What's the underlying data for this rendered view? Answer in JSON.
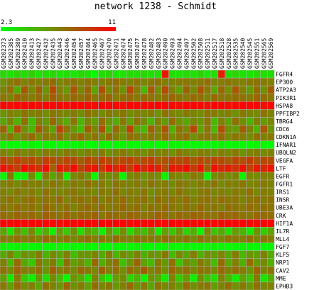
{
  "chart_data": {
    "type": "heatmap",
    "title": "network 1238 - Schmidt",
    "color_scale": {
      "min": 2.3,
      "max": 11,
      "min_label": "2.3",
      "max_label": "11",
      "low_color": "#00ff00",
      "high_color": "#ff0000",
      "mid_color": "#808000"
    },
    "grid_color": "#b0b0b0",
    "columns": [
      "GSM202373",
      "GSM202385",
      "GSM202389",
      "GSM202410",
      "GSM202413",
      "GSM202427",
      "GSM202432",
      "GSM202435",
      "GSM202443",
      "GSM202446",
      "GSM202454",
      "GSM202457",
      "GSM202464",
      "GSM202465",
      "GSM202467",
      "GSM202470",
      "GSM202471",
      "GSM202474",
      "GSM202475",
      "GSM202477",
      "GSM202478",
      "GSM202482",
      "GSM202483",
      "GSM202490",
      "GSM202493",
      "GSM202494",
      "GSM202497",
      "GSM202502",
      "GSM202508",
      "GSM202511",
      "GSM202517",
      "GSM202518",
      "GSM202528",
      "GSM202535",
      "GSM202540",
      "GSM202545",
      "GSM202551",
      "GSM202565",
      "GSM202569"
    ],
    "rows": [
      "FGFR4",
      "EP300",
      "ATP2A3",
      "PIK3R1",
      "HSPA8",
      "PPFIBP2",
      "TBRG4",
      "CDC6",
      "CDKN1A",
      "IFNAR1",
      "UBQLN2",
      "VEGFA",
      "LTF",
      "EGFR",
      "FGFR1",
      "IRS1",
      "INSR",
      "UBE3A",
      "CRK",
      "HIF1A",
      "IL7R",
      "MLL4",
      "FGF7",
      "KLF5",
      "NRP1",
      "CAV2",
      "MME",
      "EPHB3"
    ],
    "values": [
      [
        3.6,
        3.2,
        3.8,
        3.4,
        3.9,
        3.3,
        3.5,
        3.7,
        3.2,
        3.4,
        3.1,
        3.6,
        3.3,
        2.5,
        3.5,
        3.8,
        3.2,
        3.3,
        3.6,
        3.4,
        3.7,
        3.3,
        3.5,
        10.2,
        3.4,
        3.2,
        3.6,
        3.3,
        3.9,
        3.1,
        3.5,
        10.0,
        3.4,
        3.7,
        3.3,
        3.2,
        3.6,
        3.4,
        3.5
      ],
      [
        6.1,
        6.8,
        7.2,
        6.5,
        7.0,
        6.6,
        6.9,
        7.3,
        6.4,
        6.8,
        7.1,
        6.6,
        7.0,
        6.7,
        6.5,
        6.9,
        7.2,
        6.8,
        6.6,
        7.0,
        6.4,
        6.9,
        7.1,
        6.7,
        6.5,
        6.8,
        7.0,
        6.6,
        6.9,
        7.2,
        6.5,
        6.8,
        7.0,
        6.7,
        6.6,
        6.9,
        7.1,
        6.8,
        6.6
      ],
      [
        6.5,
        7.4,
        5.2,
        8.1,
        6.3,
        7.8,
        6.0,
        8.5,
        6.7,
        5.8,
        8.0,
        6.4,
        7.6,
        5.4,
        8.3,
        6.2,
        7.2,
        5.9,
        8.6,
        6.8,
        4.8,
        7.9,
        6.1,
        8.4,
        6.6,
        5.6,
        7.7,
        6.3,
        8.2,
        6.9,
        5.3,
        7.5,
        6.0,
        8.0,
        6.7,
        5.7,
        7.3,
        6.2,
        7.9
      ],
      [
        7.0,
        6.5,
        7.6,
        7.2,
        6.8,
        7.4,
        6.6,
        7.8,
        7.1,
        6.7,
        7.5,
        7.0,
        7.7,
        6.9,
        7.3,
        7.6,
        6.8,
        7.2,
        7.5,
        6.9,
        7.4,
        7.1,
        6.7,
        7.3,
        7.6,
        7.0,
        6.8,
        7.4,
        7.2,
        6.6,
        7.5,
        7.0,
        6.9,
        7.3,
        7.1,
        6.8,
        7.6,
        7.2,
        7.0
      ],
      [
        10.8,
        10.6,
        10.9,
        10.7,
        10.8,
        10.5,
        10.9,
        10.7,
        10.8,
        10.6,
        10.9,
        10.8,
        10.7,
        10.6,
        10.9,
        10.8,
        10.7,
        10.5,
        10.9,
        10.8,
        10.6,
        10.7,
        10.9,
        10.8,
        10.7,
        10.6,
        10.9,
        10.8,
        10.7,
        10.5,
        10.9,
        10.8,
        10.6,
        10.7,
        10.9,
        10.8,
        10.7,
        10.6,
        10.8
      ],
      [
        6.0,
        6.7,
        6.3,
        7.1,
        6.5,
        6.9,
        6.2,
        7.0,
        6.6,
        6.4,
        6.8,
        6.1,
        7.2,
        6.6,
        6.3,
        6.9,
        6.5,
        7.0,
        6.2,
        6.7,
        6.4,
        6.8,
        6.0,
        7.1,
        6.6,
        6.3,
        6.9,
        6.5,
        6.2,
        7.0,
        6.8,
        6.4,
        6.7,
        6.1,
        6.9,
        6.5,
        6.3,
        7.0,
        6.6
      ],
      [
        5.4,
        6.6,
        5.0,
        7.2,
        4.6,
        6.8,
        5.8,
        7.5,
        6.2,
        5.2,
        7.0,
        4.8,
        6.5,
        5.6,
        7.3,
        6.0,
        5.1,
        6.9,
        5.5,
        7.1,
        6.3,
        4.9,
        6.7,
        5.7,
        7.4,
        6.1,
        5.3,
        6.4,
        5.9,
        7.0,
        4.7,
        6.6,
        5.4,
        7.2,
        6.2,
        5.0,
        6.8,
        5.8,
        6.4
      ],
      [
        7.6,
        5.1,
        8.4,
        6.2,
        4.9,
        8.0,
        6.7,
        5.4,
        8.6,
        7.1,
        5.8,
        4.6,
        7.9,
        6.4,
        8.2,
        5.3,
        7.4,
        6.0,
        8.7,
        5.6,
        4.8,
        7.7,
        6.5,
        8.1,
        5.0,
        7.2,
        6.3,
        8.5,
        5.5,
        7.0,
        4.7,
        8.3,
        6.1,
        5.7,
        7.8,
        6.6,
        4.9,
        8.0,
        5.9
      ],
      [
        6.4,
        7.2,
        6.0,
        6.8,
        7.5,
        6.2,
        7.0,
        6.6,
        7.3,
        6.1,
        6.9,
        7.6,
        6.5,
        7.1,
        6.3,
        7.4,
        6.7,
        6.0,
        7.2,
        6.8,
        6.4,
        7.0,
        6.6,
        7.5,
        6.2,
        6.9,
        7.3,
        6.1,
        6.8,
        7.1,
        6.5,
        7.4,
        6.3,
        7.0,
        6.7,
        6.2,
        7.2,
        6.6,
        6.9
      ],
      [
        2.5,
        2.6,
        2.4,
        2.5,
        2.7,
        2.4,
        2.6,
        2.5,
        2.4,
        2.6,
        2.5,
        2.7,
        2.4,
        2.5,
        2.6,
        2.4,
        2.5,
        2.7,
        2.6,
        2.4,
        2.5,
        2.6,
        2.4,
        2.5,
        2.7,
        2.6,
        2.4,
        2.5,
        2.6,
        2.4,
        2.5,
        2.7,
        2.4,
        2.6,
        2.5,
        2.4,
        2.6,
        2.5,
        2.4
      ],
      [
        6.6,
        6.2,
        6.9,
        6.4,
        6.7,
        6.1,
        6.8,
        6.5,
        6.3,
        6.9,
        6.6,
        6.2,
        6.7,
        6.4,
        6.8,
        6.0,
        6.5,
        6.9,
        6.3,
        6.6,
        6.2,
        6.8,
        6.4,
        6.7,
        6.1,
        6.9,
        6.5,
        6.3,
        6.8,
        6.6,
        6.2,
        6.7,
        6.4,
        6.9,
        6.0,
        6.5,
        6.8,
        6.3,
        6.6
      ],
      [
        8.6,
        7.9,
        8.8,
        8.2,
        8.5,
        7.8,
        8.9,
        8.3,
        8.0,
        8.7,
        8.4,
        7.7,
        8.6,
        8.1,
        8.8,
        8.3,
        7.9,
        8.5,
        8.7,
        8.0,
        8.4,
        8.9,
        7.8,
        8.2,
        8.6,
        8.3,
        8.8,
        7.9,
        8.5,
        8.1,
        8.7,
        8.4,
        7.8,
        8.6,
        8.2,
        8.9,
        8.0,
        8.5,
        8.3
      ],
      [
        10.4,
        9.6,
        8.8,
        10.6,
        9.9,
        9.2,
        10.5,
        7.6,
        10.2,
        9.4,
        10.7,
        8.6,
        9.8,
        10.3,
        9.0,
        10.5,
        9.7,
        10.1,
        8.9,
        10.6,
        9.5,
        10.4,
        9.8,
        8.4,
        10.2,
        9.9,
        10.6,
        9.1,
        10.3,
        7.9,
        10.5,
        9.6,
        10.0,
        9.3,
        10.4,
        8.7,
        10.1,
        9.7,
        10.2
      ],
      [
        2.6,
        6.9,
        2.5,
        2.7,
        6.2,
        2.9,
        6.8,
        5.4,
        6.6,
        2.8,
        6.4,
        6.9,
        5.8,
        2.6,
        6.7,
        6.1,
        6.5,
        2.7,
        6.3,
        6.8,
        5.9,
        6.6,
        6.2,
        2.8,
        6.7,
        6.4,
        6.0,
        6.9,
        6.5,
        2.6,
        6.3,
        6.8,
        6.1,
        6.6,
        2.7,
        6.4,
        6.2,
        6.7,
        6.5
      ],
      [
        6.5,
        6.9,
        6.3,
        7.1,
        6.6,
        6.8,
        6.4,
        7.0,
        6.7,
        6.2,
        6.9,
        6.5,
        7.2,
        6.6,
        6.8,
        6.3,
        7.0,
        6.7,
        6.5,
        6.9,
        6.4,
        7.1,
        6.6,
        6.8,
        6.2,
        7.0,
        6.7,
        6.4,
        6.9,
        6.5,
        7.1,
        6.3,
        6.8,
        6.6,
        7.0,
        6.4,
        6.7,
        6.9,
        6.5
      ],
      [
        6.7,
        6.3,
        7.0,
        6.5,
        6.9,
        6.2,
        7.1,
        6.6,
        6.4,
        6.8,
        7.0,
        6.5,
        6.7,
        6.3,
        6.9,
        6.6,
        7.2,
        6.4,
        6.8,
        6.5,
        7.0,
        6.2,
        6.7,
        6.9,
        6.4,
        7.1,
        6.6,
        6.3,
        6.8,
        7.0,
        6.5,
        6.7,
        6.4,
        6.9,
        6.6,
        7.2,
        6.3,
        6.8,
        6.5
      ],
      [
        6.8,
        7.2,
        6.6,
        7.0,
        7.3,
        6.7,
        7.1,
        6.9,
        7.4,
        6.5,
        7.0,
        7.2,
        6.8,
        7.3,
        6.6,
        7.1,
        6.9,
        7.4,
        6.7,
        7.0,
        7.2,
        6.5,
        7.3,
        6.9,
        7.1,
        6.8,
        7.4,
        6.6,
        7.0,
        7.2,
        6.7,
        7.3,
        6.9,
        7.1,
        6.5,
        7.0,
        7.2,
        6.8,
        7.1
      ],
      [
        7.1,
        6.7,
        7.4,
        6.9,
        7.2,
        6.6,
        7.5,
        7.0,
        6.8,
        7.3,
        6.5,
        7.1,
        7.4,
        6.9,
        7.2,
        6.7,
        7.0,
        7.5,
        6.8,
        7.3,
        6.6,
        7.1,
        6.9,
        7.4,
        7.0,
        6.7,
        7.2,
        6.8,
        7.5,
        6.9,
        7.1,
        6.6,
        7.3,
        7.0,
        6.8,
        7.4,
        6.9,
        7.2,
        7.0
      ],
      [
        7.4,
        7.0,
        7.6,
        7.2,
        7.5,
        6.9,
        7.7,
        7.3,
        7.1,
        7.6,
        7.0,
        7.4,
        7.2,
        7.7,
        6.9,
        7.5,
        7.3,
        7.1,
        7.6,
        7.4,
        7.0,
        7.2,
        7.7,
        7.3,
        6.9,
        7.5,
        7.1,
        7.6,
        7.4,
        7.2,
        7.0,
        7.7,
        7.3,
        7.5,
        7.1,
        6.9,
        7.6,
        7.4,
        7.2
      ],
      [
        10.9,
        10.8,
        10.9,
        10.7,
        10.9,
        10.8,
        10.9,
        10.8,
        10.7,
        10.9,
        10.8,
        10.9,
        10.8,
        10.7,
        10.9,
        10.8,
        10.9,
        10.8,
        10.7,
        10.9,
        10.8,
        10.9,
        10.7,
        10.8,
        10.9,
        10.8,
        10.9,
        10.7,
        10.8,
        10.9,
        10.8,
        10.7,
        10.9,
        10.8,
        10.9,
        10.8,
        10.7,
        10.9,
        10.8
      ],
      [
        5.4,
        3.3,
        5.9,
        4.5,
        6.3,
        3.9,
        5.1,
        2.8,
        5.7,
        4.2,
        6.1,
        3.4,
        5.5,
        4.8,
        2.9,
        5.8,
        4.0,
        6.2,
        3.6,
        5.3,
        4.6,
        6.0,
        3.1,
        5.6,
        4.3,
        5.9,
        3.8,
        5.0,
        2.7,
        6.4,
        4.4,
        5.2,
        3.5,
        5.7,
        4.9,
        3.2,
        6.1,
        4.1,
        5.5
      ],
      [
        6.9,
        6.5,
        7.2,
        6.7,
        7.0,
        6.4,
        7.3,
        6.8,
        6.6,
        7.1,
        6.3,
        6.9,
        7.2,
        6.6,
        7.0,
        6.5,
        7.3,
        6.8,
        6.4,
        7.1,
        6.7,
        6.9,
        6.5,
        7.2,
        6.8,
        6.6,
        7.0,
        6.3,
        7.3,
        6.7,
        6.9,
        6.5,
        7.1,
        6.8,
        6.6,
        7.2,
        6.4,
        7.0,
        6.7
      ],
      [
        2.6,
        2.5,
        2.7,
        2.6,
        2.4,
        2.7,
        2.5,
        2.6,
        2.7,
        2.4,
        2.6,
        2.5,
        2.7,
        2.6,
        2.5,
        2.4,
        2.7,
        2.6,
        2.5,
        2.7,
        2.6,
        2.4,
        2.5,
        2.7,
        2.6,
        2.5,
        2.7,
        2.4,
        2.6,
        2.5,
        2.7,
        2.6,
        2.4,
        2.5,
        2.7,
        2.6,
        2.5,
        2.4,
        2.6
      ],
      [
        5.3,
        6.6,
        4.8,
        6.2,
        5.7,
        6.9,
        5.0,
        6.4,
        5.5,
        6.7,
        4.6,
        6.0,
        5.9,
        6.5,
        5.2,
        6.8,
        4.9,
        6.3,
        5.6,
        6.6,
        5.1,
        6.1,
        5.8,
        6.9,
        4.7,
        6.4,
        5.4,
        6.7,
        5.0,
        6.2,
        5.7,
        6.5,
        5.3,
        6.8,
        4.8,
        6.0,
        5.5,
        6.6,
        5.2
      ],
      [
        6.6,
        4.8,
        7.4,
        5.3,
        4.2,
        7.0,
        5.9,
        6.8,
        4.5,
        7.3,
        5.6,
        6.2,
        4.9,
        7.5,
        5.1,
        6.5,
        7.1,
        4.4,
        6.0,
        7.6,
        5.4,
        4.7,
        6.9,
        5.8,
        7.2,
        4.3,
        6.4,
        5.5,
        7.0,
        6.1,
        4.6,
        7.4,
        5.2,
        6.7,
        4.9,
        7.3,
        5.7,
        6.3,
        5.0
      ],
      [
        7.1,
        6.2,
        7.6,
        6.8,
        6.5,
        7.3,
        6.0,
        7.8,
        6.7,
        7.0,
        6.3,
        7.5,
        6.9,
        6.4,
        7.7,
        6.6,
        7.2,
        6.1,
        7.4,
        6.8,
        7.9,
        6.5,
        7.0,
        6.2,
        7.6,
        6.7,
        7.3,
        6.4,
        7.1,
        6.9,
        6.3,
        7.5,
        6.6,
        7.2,
        6.8,
        6.0,
        7.7,
        6.5,
        7.0
      ],
      [
        5.6,
        3.1,
        6.8,
        4.2,
        2.8,
        5.9,
        3.6,
        6.4,
        4.8,
        2.6,
        6.1,
        5.2,
        3.3,
        6.6,
        4.5,
        2.9,
        5.7,
        6.3,
        3.8,
        4.9,
        2.7,
        6.0,
        5.4,
        3.0,
        6.7,
        4.1,
        5.8,
        2.8,
        6.2,
        4.6,
        3.4,
        6.5,
        5.0,
        2.9,
        5.5,
        4.3,
        6.9,
        3.2,
        5.1
      ],
      [
        6.9,
        5.6,
        7.4,
        6.2,
        6.7,
        5.3,
        7.2,
        6.5,
        5.9,
        7.6,
        6.1,
        6.8,
        5.5,
        7.3,
        6.4,
        7.0,
        5.8,
        6.6,
        7.5,
        6.0,
        6.9,
        5.4,
        7.1,
        6.3,
        6.7,
        5.7,
        7.4,
        6.2,
        6.8,
        7.0,
        5.6,
        6.5,
        7.3,
        6.1,
        6.9,
        5.9,
        7.2,
        6.4,
        6.6
      ]
    ]
  }
}
